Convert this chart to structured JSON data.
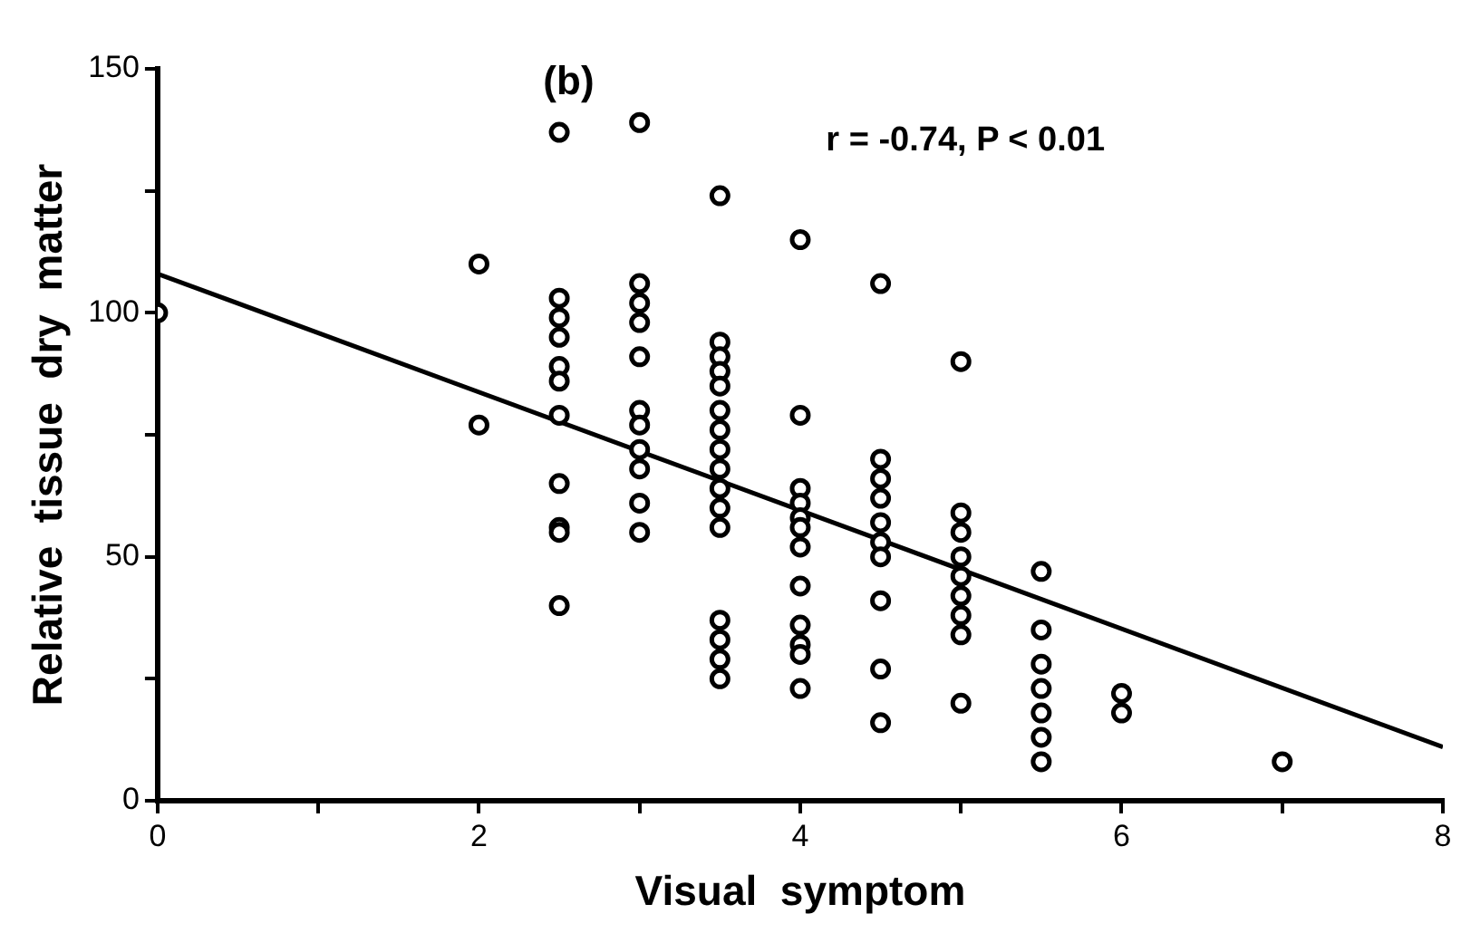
{
  "chart_data": {
    "type": "scatter",
    "xlabel": "Visual  symptom",
    "ylabel": "Relative  tissue  dry  matter",
    "annotations": [
      "(b)",
      "r = -0.74, P < 0.01"
    ],
    "xlim": [
      0,
      8
    ],
    "xticks": [
      0,
      {
        "value": 1,
        "label": null
      },
      2,
      {
        "value": 3,
        "label": null
      },
      4,
      {
        "value": 5,
        "label": null
      },
      6,
      {
        "value": 7,
        "label": null
      },
      8
    ],
    "ylim": [
      0,
      150
    ],
    "yticks": [
      0,
      {
        "value": 25,
        "label": null
      },
      50,
      {
        "value": 75,
        "label": null
      },
      100,
      {
        "value": 125,
        "label": null
      },
      150
    ],
    "grid": false,
    "legend": false,
    "marker": "circle",
    "series": [
      {
        "color": "#000000",
        "x": [
          0,
          2,
          2,
          2.5,
          2.5,
          2.5,
          2.5,
          2.5,
          2.5,
          2.5,
          2.5,
          2.5,
          2.5,
          2.5,
          3,
          3,
          3,
          3,
          3,
          3,
          3,
          3,
          3,
          3,
          3,
          3.5,
          3.5,
          3.5,
          3.5,
          3.5,
          3.5,
          3.5,
          3.5,
          3.5,
          3.5,
          3.5,
          3.5,
          3.5,
          3.5,
          3.5,
          3.5,
          4,
          4,
          4,
          4,
          4,
          4,
          4,
          4,
          4,
          4,
          4,
          4,
          4.5,
          4.5,
          4.5,
          4.5,
          4.5,
          4.5,
          4.5,
          4.5,
          4.5,
          4.5,
          5,
          5,
          5,
          5,
          5,
          5,
          5,
          5,
          5,
          5.5,
          5.5,
          5.5,
          5.5,
          5.5,
          5.5,
          5.5,
          6,
          6,
          7
        ],
        "values": [
          100,
          110,
          77,
          137,
          103,
          99,
          95,
          89,
          86,
          79,
          65,
          56,
          55,
          40,
          139,
          106,
          102,
          98,
          91,
          80,
          77,
          72,
          68,
          61,
          55,
          124,
          94,
          91,
          88,
          85,
          80,
          76,
          72,
          68,
          64,
          60,
          56,
          37,
          33,
          29,
          25,
          115,
          79,
          64,
          61,
          58,
          56,
          52,
          44,
          36,
          32,
          30,
          23,
          106,
          70,
          66,
          62,
          57,
          53,
          50,
          41,
          27,
          16,
          90,
          59,
          55,
          50,
          46,
          42,
          38,
          34,
          20,
          47,
          35,
          28,
          23,
          18,
          13,
          8,
          22,
          18,
          8
        ]
      },
      {
        "type": "line",
        "color": "#000000",
        "x": [
          0,
          8
        ],
        "values": [
          108,
          11
        ],
        "marker": "none",
        "line_style": "solid"
      }
    ]
  }
}
